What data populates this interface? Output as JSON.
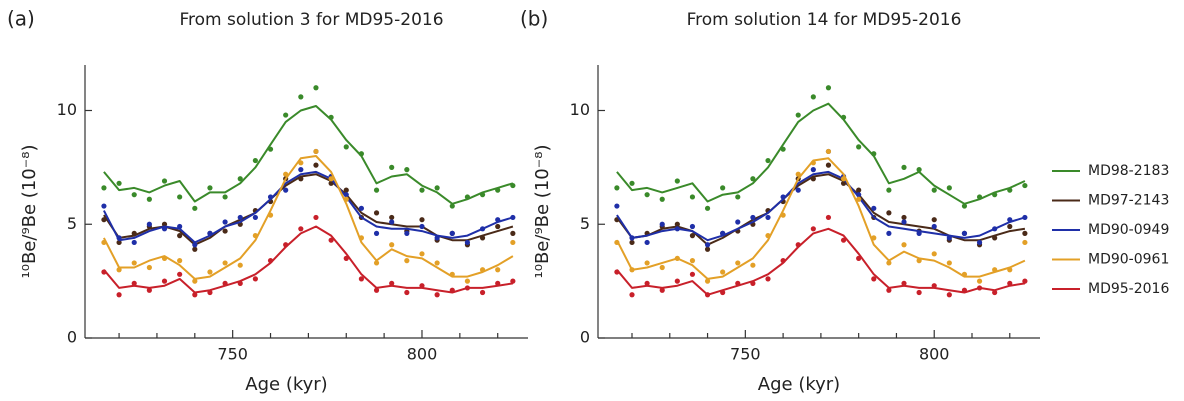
{
  "chart_data": [
    {
      "type": "line",
      "label": "(a)",
      "title": "From solution 3 for MD95-2016",
      "x_label": "Age (kyr)",
      "y_label": "¹⁰Be/⁹Be (10⁻⁸)",
      "x": [
        716,
        720,
        724,
        728,
        732,
        736,
        740,
        744,
        748,
        752,
        756,
        760,
        764,
        768,
        772,
        776,
        780,
        784,
        788,
        792,
        796,
        800,
        804,
        808,
        812,
        816,
        820,
        824
      ],
      "series": [
        {
          "name": "MD98-2183",
          "color": "#3a8a2a",
          "values": [
            7.3,
            6.5,
            6.6,
            6.4,
            6.7,
            6.9,
            6.0,
            6.4,
            6.4,
            6.8,
            7.5,
            8.5,
            9.5,
            10.0,
            10.2,
            9.6,
            8.7,
            8.0,
            6.8,
            7.1,
            7.2,
            6.7,
            6.4,
            5.9,
            6.1,
            6.4,
            6.6,
            6.8
          ],
          "points": [
            6.6,
            6.8,
            6.3,
            6.1,
            6.9,
            6.2,
            5.7,
            6.6,
            6.2,
            7.0,
            7.8,
            8.3,
            9.8,
            10.6,
            11.0,
            9.7,
            8.4,
            8.1,
            6.5,
            7.5,
            7.4,
            6.5,
            6.6,
            5.8,
            6.2,
            6.3,
            6.5,
            6.7
          ]
        },
        {
          "name": "MD97-2143",
          "color": "#4a2a18",
          "values": [
            5.4,
            4.4,
            4.5,
            4.8,
            4.9,
            4.7,
            4.1,
            4.4,
            4.9,
            5.2,
            5.5,
            6.1,
            6.7,
            7.1,
            7.2,
            6.9,
            6.3,
            5.5,
            5.1,
            5.0,
            4.9,
            4.9,
            4.5,
            4.3,
            4.3,
            4.5,
            4.7,
            4.9
          ],
          "points": [
            5.2,
            4.2,
            4.6,
            4.9,
            5.0,
            4.5,
            3.9,
            4.6,
            4.7,
            5.0,
            5.6,
            6.0,
            7.0,
            7.0,
            7.6,
            6.8,
            6.5,
            5.3,
            5.5,
            5.3,
            4.7,
            5.2,
            4.3,
            4.6,
            4.1,
            4.4,
            4.9,
            4.6
          ]
        },
        {
          "name": "MD90-0949",
          "color": "#1f2fa8",
          "values": [
            5.6,
            4.3,
            4.4,
            4.7,
            4.9,
            4.8,
            4.2,
            4.5,
            4.9,
            5.1,
            5.5,
            6.1,
            6.8,
            7.2,
            7.3,
            7.0,
            6.2,
            5.3,
            4.9,
            4.8,
            4.8,
            4.7,
            4.5,
            4.4,
            4.5,
            4.8,
            5.1,
            5.3
          ],
          "points": [
            5.8,
            4.4,
            4.2,
            5.0,
            4.8,
            4.9,
            4.1,
            4.6,
            5.1,
            5.3,
            5.3,
            6.2,
            6.5,
            7.4,
            8.2,
            7.1,
            6.3,
            5.7,
            4.6,
            5.1,
            4.6,
            4.9,
            4.4,
            4.6,
            4.2,
            4.8,
            5.2,
            5.3
          ]
        },
        {
          "name": "MD90-0961",
          "color": "#e3a027",
          "values": [
            4.4,
            3.1,
            3.1,
            3.4,
            3.6,
            3.2,
            2.6,
            2.7,
            3.1,
            3.5,
            4.3,
            5.6,
            7.0,
            7.9,
            8.0,
            7.3,
            5.9,
            4.2,
            3.4,
            3.9,
            3.6,
            3.5,
            3.1,
            2.7,
            2.7,
            2.9,
            3.2,
            3.6
          ],
          "points": [
            4.2,
            3.0,
            3.3,
            3.1,
            3.5,
            3.4,
            2.5,
            2.9,
            3.3,
            3.2,
            4.5,
            5.4,
            7.2,
            7.7,
            8.2,
            7.0,
            6.1,
            4.4,
            3.3,
            4.1,
            3.4,
            3.7,
            3.3,
            2.8,
            2.5,
            3.0,
            3.0,
            4.2
          ]
        },
        {
          "name": "MD95-2016",
          "color": "#c8202a",
          "values": [
            3.0,
            2.2,
            2.3,
            2.2,
            2.3,
            2.6,
            2.0,
            2.1,
            2.3,
            2.5,
            2.8,
            3.3,
            4.0,
            4.6,
            4.9,
            4.5,
            3.7,
            2.8,
            2.2,
            2.3,
            2.2,
            2.2,
            2.1,
            2.0,
            2.2,
            2.2,
            2.3,
            2.4
          ],
          "points": [
            2.9,
            1.9,
            2.4,
            2.1,
            2.5,
            2.8,
            1.9,
            2.0,
            2.4,
            2.4,
            2.6,
            3.4,
            4.1,
            4.8,
            5.3,
            4.3,
            3.5,
            2.6,
            2.1,
            2.4,
            2.0,
            2.3,
            1.9,
            2.1,
            2.2,
            2.0,
            2.4,
            2.5
          ]
        }
      ],
      "xlim": [
        711,
        828
      ],
      "ylim": [
        0,
        12
      ],
      "xticks": [
        750,
        800
      ],
      "minor_xticks": [
        720,
        730,
        740,
        760,
        770,
        780,
        790,
        810,
        820
      ],
      "yticks": [
        0,
        5,
        10
      ],
      "legend": false
    },
    {
      "type": "line",
      "label": "(b)",
      "title": "From solution 14 for MD95-2016",
      "x_label": "Age (kyr)",
      "y_label": "¹⁰Be/⁹Be (10⁻⁸)",
      "x": [
        716,
        720,
        724,
        728,
        732,
        736,
        740,
        744,
        748,
        752,
        756,
        760,
        764,
        768,
        772,
        776,
        780,
        784,
        788,
        792,
        796,
        800,
        804,
        808,
        812,
        816,
        820,
        824
      ],
      "series": [
        {
          "name": "MD98-2183",
          "color": "#3a8a2a",
          "values": [
            7.3,
            6.5,
            6.6,
            6.4,
            6.6,
            6.8,
            6.0,
            6.3,
            6.4,
            6.8,
            7.5,
            8.5,
            9.5,
            10.0,
            10.3,
            9.6,
            8.7,
            8.0,
            6.8,
            7.0,
            7.3,
            6.7,
            6.3,
            5.9,
            6.1,
            6.4,
            6.6,
            6.9
          ],
          "points": [
            6.6,
            6.8,
            6.3,
            6.1,
            6.9,
            6.2,
            5.7,
            6.6,
            6.2,
            7.0,
            7.8,
            8.3,
            9.8,
            10.6,
            11.0,
            9.7,
            8.4,
            8.1,
            6.5,
            7.5,
            7.4,
            6.5,
            6.6,
            5.8,
            6.2,
            6.3,
            6.5,
            6.7
          ]
        },
        {
          "name": "MD97-2143",
          "color": "#4a2a18",
          "values": [
            5.3,
            4.4,
            4.5,
            4.8,
            4.9,
            4.7,
            4.1,
            4.4,
            4.8,
            5.2,
            5.5,
            6.1,
            6.7,
            7.1,
            7.2,
            6.9,
            6.3,
            5.5,
            5.1,
            5.0,
            4.9,
            4.8,
            4.5,
            4.3,
            4.3,
            4.5,
            4.7,
            4.8
          ],
          "points": [
            5.2,
            4.2,
            4.6,
            4.9,
            5.0,
            4.5,
            3.9,
            4.6,
            4.7,
            5.0,
            5.6,
            6.0,
            7.0,
            7.0,
            7.6,
            6.8,
            6.5,
            5.3,
            5.5,
            5.3,
            4.7,
            5.2,
            4.3,
            4.6,
            4.1,
            4.4,
            4.9,
            4.6
          ]
        },
        {
          "name": "MD90-0949",
          "color": "#1f2fa8",
          "values": [
            5.4,
            4.4,
            4.5,
            4.7,
            4.8,
            4.7,
            4.3,
            4.5,
            4.8,
            5.1,
            5.5,
            6.1,
            6.8,
            7.2,
            7.3,
            7.0,
            6.2,
            5.3,
            4.9,
            4.8,
            4.7,
            4.6,
            4.5,
            4.4,
            4.5,
            4.8,
            5.1,
            5.3
          ],
          "points": [
            5.8,
            4.4,
            4.2,
            5.0,
            4.8,
            4.9,
            4.1,
            4.6,
            5.1,
            5.3,
            5.3,
            6.2,
            6.5,
            7.4,
            8.2,
            7.1,
            6.3,
            5.7,
            4.6,
            5.1,
            4.6,
            4.9,
            4.4,
            4.6,
            4.2,
            4.8,
            5.2,
            5.3
          ]
        },
        {
          "name": "MD90-0961",
          "color": "#e3a027",
          "values": [
            4.3,
            3.0,
            3.1,
            3.3,
            3.5,
            3.2,
            2.6,
            2.7,
            3.1,
            3.5,
            4.3,
            5.6,
            7.0,
            7.8,
            7.9,
            7.2,
            5.8,
            4.1,
            3.4,
            3.8,
            3.5,
            3.4,
            3.1,
            2.7,
            2.7,
            2.9,
            3.1,
            3.4
          ],
          "points": [
            4.2,
            3.0,
            3.3,
            3.1,
            3.5,
            3.4,
            2.5,
            2.9,
            3.3,
            3.2,
            4.5,
            5.4,
            7.2,
            7.7,
            8.2,
            7.0,
            6.1,
            4.4,
            3.3,
            4.1,
            3.4,
            3.7,
            3.3,
            2.8,
            2.5,
            3.0,
            3.0,
            4.2
          ]
        },
        {
          "name": "MD95-2016",
          "color": "#c8202a",
          "values": [
            3.0,
            2.2,
            2.3,
            2.2,
            2.3,
            2.5,
            1.9,
            2.1,
            2.3,
            2.5,
            2.8,
            3.3,
            4.0,
            4.6,
            4.8,
            4.5,
            3.7,
            2.8,
            2.2,
            2.3,
            2.2,
            2.2,
            2.1,
            2.0,
            2.2,
            2.1,
            2.3,
            2.4
          ],
          "points": [
            2.9,
            1.9,
            2.4,
            2.1,
            2.5,
            2.8,
            1.9,
            2.0,
            2.4,
            2.4,
            2.6,
            3.4,
            4.1,
            4.8,
            5.3,
            4.3,
            3.5,
            2.6,
            2.1,
            2.4,
            2.0,
            2.3,
            1.9,
            2.1,
            2.2,
            2.0,
            2.4,
            2.5
          ]
        }
      ],
      "xlim": [
        711,
        828
      ],
      "ylim": [
        0,
        12
      ],
      "xticks": [
        750,
        800
      ],
      "minor_xticks": [
        720,
        730,
        740,
        760,
        770,
        780,
        790,
        810,
        820
      ],
      "yticks": [
        0,
        5,
        10
      ],
      "legend": "right"
    }
  ]
}
